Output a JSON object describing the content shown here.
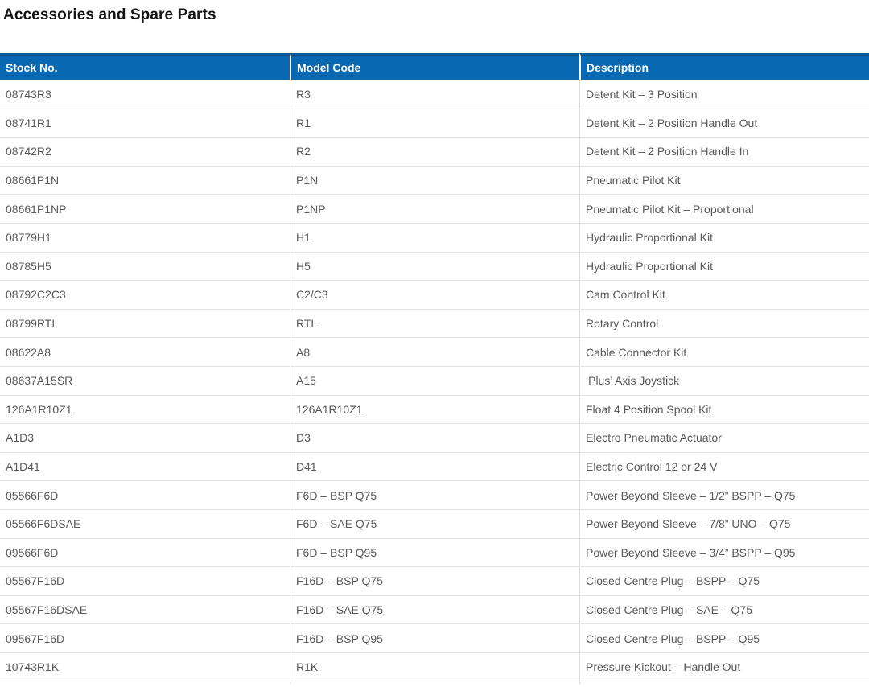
{
  "page": {
    "title": "Accessories and Spare Parts"
  },
  "theme": {
    "header_bg": "#0968b2",
    "header_top_border": "#0a5a9a",
    "header_text": "#ffffff",
    "body_text": "#58595c",
    "row_border": "#e4e4e6",
    "column_border": "#dcdcde"
  },
  "table": {
    "columns": [
      "Stock No.",
      "Model Code",
      "Description"
    ],
    "rows": [
      {
        "stock": "08743R3",
        "model": "R3",
        "description": "Detent Kit – 3 Position"
      },
      {
        "stock": "08741R1",
        "model": "R1",
        "description": "Detent Kit – 2 Position Handle Out"
      },
      {
        "stock": "08742R2",
        "model": "R2",
        "description": "Detent Kit – 2 Position Handle In"
      },
      {
        "stock": "08661P1N",
        "model": "P1N",
        "description": "Pneumatic Pilot Kit"
      },
      {
        "stock": "08661P1NP",
        "model": "P1NP",
        "description": "Pneumatic Pilot Kit – Proportional"
      },
      {
        "stock": "08779H1",
        "model": "H1",
        "description": "Hydraulic Proportional Kit"
      },
      {
        "stock": "08785H5",
        "model": "H5",
        "description": "Hydraulic Proportional Kit"
      },
      {
        "stock": "08792C2C3",
        "model": "C2/C3",
        "description": "Cam Control Kit"
      },
      {
        "stock": "08799RTL",
        "model": "RTL",
        "description": "Rotary Control"
      },
      {
        "stock": "08622A8",
        "model": "A8",
        "description": "Cable Connector Kit"
      },
      {
        "stock": "08637A15SR",
        "model": "A15",
        "description": "‘Plus’ Axis Joystick"
      },
      {
        "stock": "126A1R10Z1",
        "model": "126A1R10Z1",
        "description": "Float 4 Position Spool Kit"
      },
      {
        "stock": "A1D3",
        "model": "D3",
        "description": "Electro Pneumatic Actuator"
      },
      {
        "stock": "A1D41",
        "model": "D41",
        "description": "Electric Control 12 or 24 V"
      },
      {
        "stock": "05566F6D",
        "model": "F6D – BSP Q75",
        "description": "Power Beyond Sleeve – 1/2” BSPP – Q75"
      },
      {
        "stock": "05566F6DSAE",
        "model": "F6D – SAE Q75",
        "description": "Power Beyond Sleeve – 7/8” UNO – Q75"
      },
      {
        "stock": "09566F6D",
        "model": "F6D – BSP Q95",
        "description": "Power Beyond Sleeve – 3/4” BSPP – Q95"
      },
      {
        "stock": "05567F16D",
        "model": "F16D – BSP Q75",
        "description": "Closed Centre Plug – BSPP – Q75"
      },
      {
        "stock": "05567F16DSAE",
        "model": "F16D – SAE Q75",
        "description": "Closed Centre Plug – SAE – Q75"
      },
      {
        "stock": "09567F16D",
        "model": "F16D – BSP Q95",
        "description": "Closed Centre Plug – BSPP – Q95"
      },
      {
        "stock": "10743R1K",
        "model": "R1K",
        "description": "Pressure Kickout – Handle Out"
      }
    ]
  }
}
